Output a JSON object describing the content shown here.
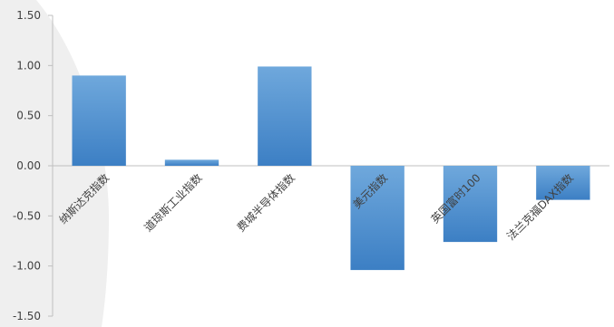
{
  "chart_data": {
    "type": "bar",
    "categories": [
      "纳斯达克指数",
      "道琼斯工业指数",
      "费城半导体指数",
      "美元指数",
      "英国富时100",
      "法兰克福DAX指数"
    ],
    "values": [
      0.9,
      0.06,
      0.99,
      -1.04,
      -0.76,
      -0.34
    ],
    "ylim": [
      -1.5,
      1.5
    ],
    "yticks": [
      "1.50",
      "1.00",
      "0.50",
      "0.00",
      "-0.50",
      "-1.00",
      "-1.50"
    ],
    "ytick_values": [
      1.5,
      1.0,
      0.5,
      0.0,
      -0.5,
      -1.0,
      -1.5
    ],
    "grid": false,
    "legend": "none",
    "colors": {
      "bar_top": "#6fa8dc",
      "bar_bottom": "#3c7fc4",
      "axis": "#bfbfbf",
      "text": "#404040",
      "background_swoosh": "#efefef"
    }
  }
}
